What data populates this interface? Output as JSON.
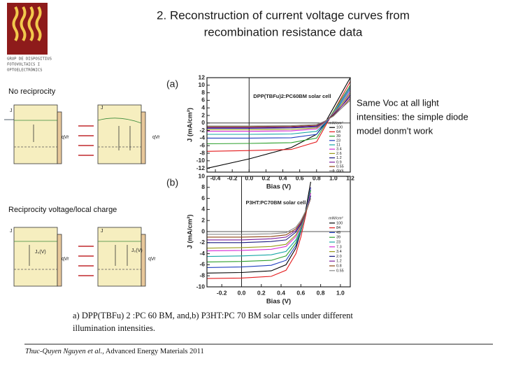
{
  "slide": {
    "title_lines": [
      "2. Reconstruction of current voltage curves from",
      "recombination resistance data"
    ],
    "logo_lines": [
      "GRUP DE DISPOSITIUS",
      "FOTOVOLTAICS I",
      "OPTOELECTRÒNICS"
    ],
    "note_lines": [
      "Same Voc at all light",
      "intensities: the simple diode",
      "model donm’t work"
    ],
    "schematics": {
      "top_heading": "No reciprocity",
      "bottom_heading": "Reciprocity voltage/local charge",
      "top_labels": [
        "J",
        "qVr",
        "J",
        "qVr"
      ],
      "bottom_labels": [
        "J",
        "J₀(V)",
        "qVr",
        "J",
        "J₀(V)",
        "qVr"
      ]
    },
    "caption_lines": [
      "a) DPP(TBFu) 2 :PC 60 BM, and,b) P3HT:PC 70 BM solar cells under different",
      "illumination intensities."
    ],
    "citation": {
      "authors": "Thuc-Quyen Nguyen et al.,",
      "journal": "Advanced Energy Materials 2011"
    }
  },
  "chart_data": [
    {
      "type": "line",
      "panel": "(a)",
      "title": "DPP(TBFu)2:PC60BM solar cell",
      "x_label": "Bias (V)",
      "y_label": "J (mA/cm²)",
      "legend_title": "mW/cm²",
      "xlim": [
        -0.5,
        1.2
      ],
      "ylim": [
        -13,
        12
      ],
      "xticks": [
        -0.4,
        -0.2,
        {
          "value": 0,
          "label": "0.0"
        },
        0.2,
        0.4,
        0.6,
        0.8,
        {
          "value": 1,
          "label": "1.0"
        },
        1.2
      ],
      "yticks": [
        -12,
        -10,
        -8,
        -6,
        -4,
        -2,
        0,
        2,
        4,
        6,
        8,
        10,
        12
      ],
      "x": [
        -0.5,
        0,
        0.5,
        0.8,
        0.9,
        1.0,
        1.1,
        1.2
      ],
      "series": [
        {
          "name": "100",
          "color": "#000000",
          "values": [
            -12,
            -9.5,
            -6.5,
            -3,
            0,
            4,
            8,
            12
          ]
        },
        {
          "name": "64",
          "color": "#e41a1c",
          "values": [
            -7.5,
            -7.3,
            -7,
            -5,
            -1,
            3,
            7,
            11
          ]
        },
        {
          "name": "39",
          "color": "#2ca02c",
          "values": [
            -5.5,
            -5.4,
            -5.2,
            -4,
            -0.5,
            3,
            6.5,
            10
          ]
        },
        {
          "name": "23",
          "color": "#1f3fbf",
          "values": [
            -4,
            -4,
            -3.9,
            -3,
            -0.3,
            2.5,
            6,
            9.5
          ]
        },
        {
          "name": "11",
          "color": "#17a6a6",
          "values": [
            -3,
            -3,
            -2.9,
            -2.2,
            0,
            2.5,
            5.5,
            9
          ]
        },
        {
          "name": "3.4",
          "color": "#d62ad6",
          "values": [
            -2.2,
            -2.2,
            -2.1,
            -1.6,
            0.2,
            2.5,
            5,
            8.5
          ]
        },
        {
          "name": "2.6",
          "color": "#9a9a1a",
          "values": [
            -1.8,
            -1.8,
            -1.7,
            -1.3,
            0.3,
            2.3,
            5,
            8
          ]
        },
        {
          "name": "1.2",
          "color": "#1a1a80",
          "values": [
            -1.4,
            -1.4,
            -1.3,
            -1,
            0.4,
            2.2,
            4.5,
            7.5
          ]
        },
        {
          "name": "0.9",
          "color": "#7a1a9a",
          "values": [
            -1.2,
            -1.2,
            -1.1,
            -0.8,
            0.4,
            2,
            4.5,
            7
          ]
        },
        {
          "name": "0.55",
          "color": "#8b4513",
          "values": [
            -1,
            -1,
            -0.9,
            -0.6,
            0.5,
            2,
            4,
            6.5
          ]
        },
        {
          "name": "dark",
          "color": "#888888",
          "values": [
            -0.8,
            -0.8,
            -0.7,
            -0.4,
            0.5,
            1.8,
            4,
            6
          ]
        }
      ]
    },
    {
      "type": "line",
      "panel": "(b)",
      "title": "P3HT:PC70BM solar cell",
      "x_label": "Bias (V)",
      "y_label": "J (mA/cm²)",
      "legend_title": "mW/cm²",
      "xlim": [
        -0.35,
        1.1
      ],
      "ylim": [
        -10,
        10
      ],
      "xticks": [
        -0.2,
        {
          "value": 0,
          "label": "0.0"
        },
        0.2,
        0.4,
        0.6,
        0.8,
        {
          "value": 1,
          "label": "1.0"
        }
      ],
      "yticks": [
        -10,
        -8,
        -6,
        -4,
        -2,
        0,
        2,
        4,
        6,
        8,
        10
      ],
      "x": [
        -0.35,
        0,
        0.3,
        0.45,
        0.55,
        0.6,
        0.65,
        0.7
      ],
      "series": [
        {
          "name": "100",
          "color": "#000000",
          "values": [
            -7.5,
            -7.4,
            -7.1,
            -6,
            -3,
            0,
            4,
            9
          ]
        },
        {
          "name": "84",
          "color": "#e41a1c",
          "values": [
            -8.5,
            -8.4,
            -8.1,
            -7,
            -4,
            -1,
            3,
            8
          ]
        },
        {
          "name": "49",
          "color": "#1f3fbf",
          "values": [
            -6.5,
            -6.4,
            -6.1,
            -5.2,
            -2.5,
            0,
            3.5,
            8
          ]
        },
        {
          "name": "39",
          "color": "#2ca02c",
          "values": [
            -5.5,
            -5.4,
            -5.2,
            -4.4,
            -2,
            0.2,
            3.5,
            7.5
          ]
        },
        {
          "name": "23",
          "color": "#17a6a6",
          "values": [
            -4.5,
            -4.4,
            -4.2,
            -3.6,
            -1.5,
            0.5,
            3.5,
            7
          ]
        },
        {
          "name": "7.3",
          "color": "#d62ad6",
          "values": [
            -3.5,
            -3.4,
            -3.2,
            -2.7,
            -0.9,
            0.8,
            3.5,
            7
          ]
        },
        {
          "name": "3.4",
          "color": "#9a9a1a",
          "values": [
            -3,
            -2.9,
            -2.7,
            -2.3,
            -0.6,
            1,
            3.5,
            6.5
          ]
        },
        {
          "name": "2.0",
          "color": "#1a1a80",
          "values": [
            -2,
            -2,
            -1.8,
            -1.5,
            -0.1,
            1.3,
            3.5,
            6.5
          ]
        },
        {
          "name": "1.2",
          "color": "#7a1a9a",
          "values": [
            -1.5,
            -1.5,
            -1.3,
            -1,
            0.2,
            1.5,
            3.5,
            6
          ]
        },
        {
          "name": "0.8",
          "color": "#8b4513",
          "values": [
            -1,
            -1,
            -0.9,
            -0.6,
            0.5,
            1.7,
            3.5,
            6
          ]
        },
        {
          "name": "0.55",
          "color": "#888888",
          "values": [
            -0.5,
            -0.5,
            -0.4,
            -0.2,
            0.8,
            2,
            3.8,
            6
          ]
        }
      ]
    }
  ]
}
